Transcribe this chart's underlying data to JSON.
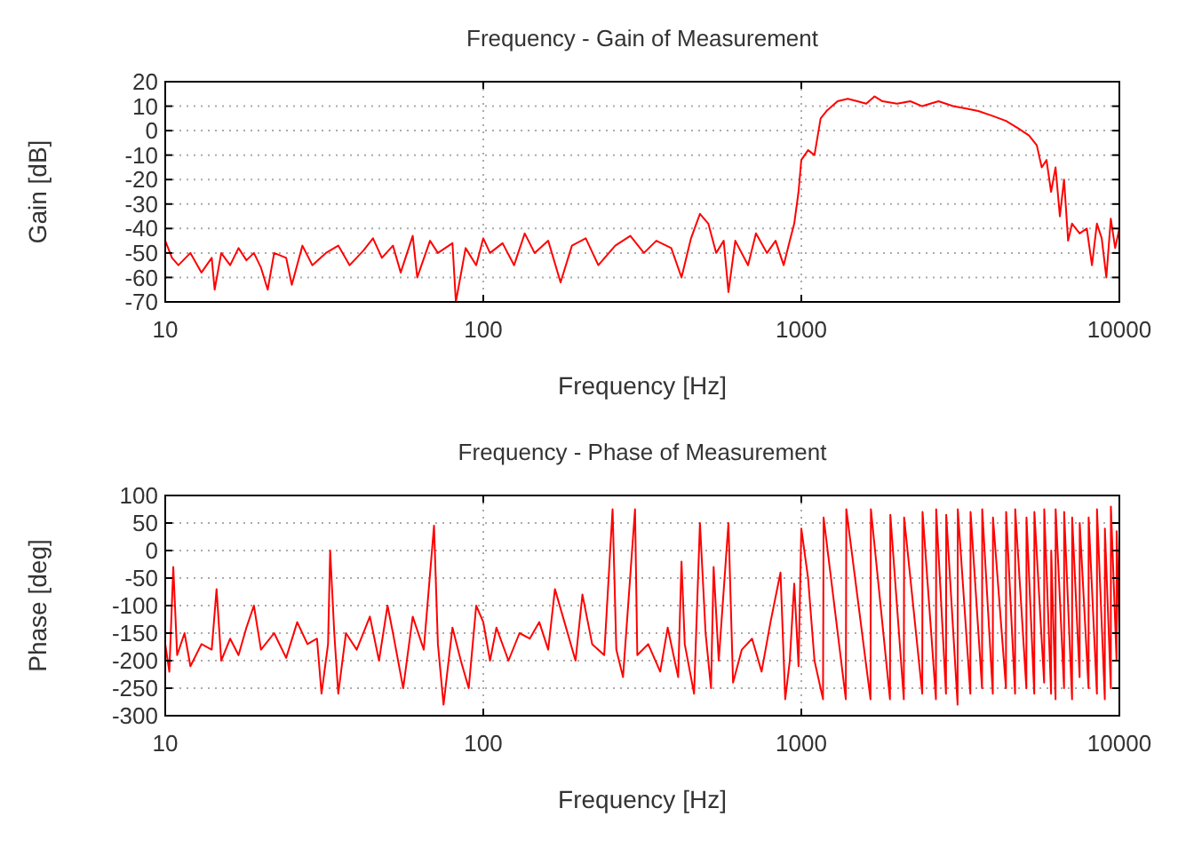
{
  "chart_data": [
    {
      "type": "line",
      "title": "Frequency - Gain of Measurement",
      "xlabel": "Frequency [Hz]",
      "ylabel": "Gain [dB]",
      "log": "x",
      "grid": true,
      "xlim": [
        10,
        10000
      ],
      "xticks": [
        10,
        100,
        1000,
        10000
      ],
      "ylim": [
        -70,
        20
      ],
      "yticks": [
        -70,
        -60,
        -50,
        -40,
        -30,
        -20,
        -10,
        0,
        10,
        20
      ],
      "series": [
        {
          "color": "#ff0000",
          "x": [
            10,
            10.5,
            11,
            12,
            13,
            14,
            14.3,
            15,
            16,
            17,
            18,
            19,
            20,
            21,
            22,
            24,
            25,
            27,
            29,
            32,
            35,
            38,
            42,
            45,
            48,
            52,
            55,
            60,
            62,
            68,
            72,
            80,
            82,
            88,
            95,
            100,
            105,
            115,
            125,
            135,
            145,
            160,
            175,
            190,
            210,
            230,
            260,
            290,
            320,
            350,
            390,
            420,
            450,
            480,
            510,
            540,
            570,
            590,
            620,
            680,
            720,
            780,
            830,
            880,
            920,
            950,
            980,
            1000,
            1050,
            1100,
            1150,
            1200,
            1300,
            1400,
            1500,
            1600,
            1700,
            1800,
            2000,
            2200,
            2400,
            2700,
            3000,
            3300,
            3600,
            4000,
            4400,
            4800,
            5200,
            5500,
            5700,
            5900,
            6100,
            6300,
            6500,
            6700,
            6900,
            7100,
            7500,
            7900,
            8200,
            8500,
            8800,
            9100,
            9400,
            9700,
            10000
          ],
          "values": [
            -45,
            -52,
            -55,
            -50,
            -58,
            -52,
            -65,
            -50,
            -55,
            -48,
            -53,
            -50,
            -56,
            -65,
            -50,
            -52,
            -63,
            -47,
            -55,
            -50,
            -47,
            -55,
            -49,
            -44,
            -52,
            -47,
            -58,
            -43,
            -60,
            -45,
            -50,
            -46,
            -70,
            -48,
            -55,
            -44,
            -50,
            -46,
            -55,
            -42,
            -50,
            -45,
            -62,
            -47,
            -44,
            -55,
            -47,
            -43,
            -50,
            -45,
            -48,
            -60,
            -44,
            -34,
            -38,
            -50,
            -45,
            -66,
            -45,
            -55,
            -42,
            -50,
            -45,
            -55,
            -45,
            -38,
            -25,
            -12,
            -8,
            -10,
            5,
            8,
            12,
            13,
            12,
            11,
            14,
            12,
            11,
            12,
            10,
            12,
            10,
            9,
            8,
            6,
            4,
            1,
            -2,
            -6,
            -15,
            -12,
            -25,
            -15,
            -35,
            -20,
            -45,
            -38,
            -42,
            -40,
            -55,
            -38,
            -44,
            -60,
            -36,
            -48,
            -40
          ]
        }
      ]
    },
    {
      "type": "line",
      "title": "Frequency - Phase of Measurement",
      "xlabel": "Frequency [Hz]",
      "ylabel": "Phase [deg]",
      "log": "x",
      "grid": true,
      "xlim": [
        10,
        10000
      ],
      "xticks": [
        10,
        100,
        1000,
        10000
      ],
      "ylim": [
        -300,
        100
      ],
      "yticks": [
        -300,
        -250,
        -200,
        -150,
        -100,
        -50,
        0,
        50,
        100
      ],
      "series": [
        {
          "color": "#ff0000",
          "x": [
            10,
            10.3,
            10.6,
            10.9,
            11.5,
            12,
            13,
            14,
            14.5,
            15,
            16,
            17,
            18,
            19,
            20,
            22,
            24,
            26,
            28,
            30,
            31,
            32.5,
            33,
            34,
            35,
            37,
            40,
            44,
            47,
            50,
            52,
            56,
            60,
            65,
            70,
            72,
            75,
            80,
            85,
            90,
            95,
            100,
            105,
            110,
            120,
            130,
            140,
            150,
            160,
            168,
            180,
            195,
            205,
            220,
            240,
            255,
            262,
            275,
            300,
            305,
            330,
            360,
            380,
            410,
            420,
            430,
            460,
            480,
            500,
            520,
            530,
            550,
            590,
            610,
            650,
            700,
            750,
            800,
            860,
            890,
            920,
            950,
            980,
            1000,
            1050,
            1100,
            1170,
            1175,
            1380,
            1385,
            1650,
            1655,
            1900,
            1905,
            2100,
            2105,
            2400,
            2405,
            2650,
            2655,
            2850,
            2855,
            3100,
            3105,
            3400,
            3405,
            3700,
            3705,
            4000,
            4005,
            4400,
            4405,
            4700,
            4705,
            5100,
            5105,
            5400,
            5405,
            5800,
            5805,
            6100,
            6105,
            6300,
            6305,
            6700,
            6705,
            7100,
            7105,
            7500,
            7505,
            8000,
            8005,
            8500,
            8505,
            9000,
            9005,
            9400,
            9405,
            9800,
            9805,
            10000
          ],
          "values": [
            -170,
            -220,
            -30,
            -190,
            -150,
            -210,
            -170,
            -180,
            -70,
            -200,
            -160,
            -190,
            -140,
            -100,
            -180,
            -150,
            -195,
            -130,
            -170,
            -160,
            -260,
            -170,
            0,
            -150,
            -260,
            -150,
            -180,
            -120,
            -200,
            -100,
            -150,
            -250,
            -120,
            -180,
            45,
            -170,
            -280,
            -140,
            -200,
            -250,
            -100,
            -130,
            -200,
            -140,
            -200,
            -150,
            -160,
            -130,
            -180,
            -70,
            -130,
            -200,
            -80,
            -170,
            -190,
            75,
            -180,
            -230,
            75,
            -190,
            -170,
            -220,
            -140,
            -230,
            -20,
            -170,
            -260,
            50,
            -150,
            -250,
            -30,
            -200,
            50,
            -240,
            -180,
            -160,
            -220,
            -130,
            -40,
            -270,
            -200,
            -60,
            -210,
            40,
            -50,
            -200,
            -270,
            60,
            -270,
            75,
            -270,
            75,
            -270,
            65,
            -270,
            60,
            -260,
            70,
            -270,
            75,
            -260,
            65,
            -280,
            75,
            -260,
            70,
            -250,
            75,
            -260,
            60,
            -250,
            70,
            -260,
            75,
            -250,
            60,
            -260,
            70,
            -240,
            75,
            -260,
            0,
            -270,
            75,
            -250,
            70,
            -270,
            60,
            -230,
            50,
            -250,
            60,
            -260,
            75,
            -270,
            40,
            -250,
            80,
            -200,
            35,
            -150
          ]
        }
      ]
    }
  ]
}
